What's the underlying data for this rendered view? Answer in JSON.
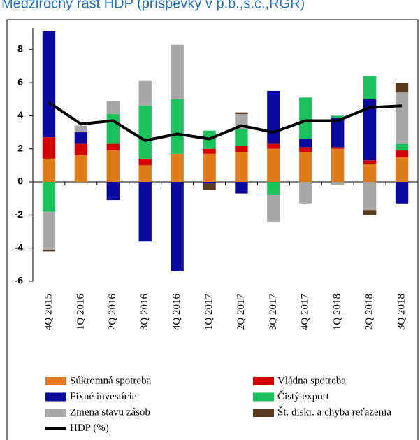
{
  "chart_data": {
    "type": "bar",
    "stacked": true,
    "title": "Medziročný rast HDP (príspevky v p.b.,s.c.,RGR)",
    "categories": [
      "4Q 2015",
      "1Q 2016",
      "2Q 2016",
      "3Q 2016",
      "4Q 2016",
      "1Q 2017",
      "2Q 2017",
      "3Q 2017",
      "4Q 2017",
      "1Q 2018",
      "2Q 2018",
      "3Q 2018"
    ],
    "series": [
      {
        "name": "Súkromná spotreba",
        "color": "#e07b1a",
        "values": [
          1.4,
          1.6,
          1.9,
          1.0,
          1.7,
          1.7,
          1.8,
          2.0,
          1.8,
          2.0,
          1.1,
          1.5
        ]
      },
      {
        "name": "Vládna spotreba",
        "color": "#d40000",
        "values": [
          1.3,
          0.7,
          0.4,
          0.4,
          0,
          0.3,
          0.4,
          0.3,
          0.3,
          0.1,
          0.2,
          0.4
        ]
      },
      {
        "name": "Fixné investície",
        "color": "#0a0aa0",
        "values": [
          6.4,
          0.7,
          -1.1,
          -3.6,
          -5.4,
          -0.1,
          -0.7,
          3.2,
          0.5,
          1.8,
          3.7,
          -1.3
        ]
      },
      {
        "name": "Čistý export",
        "color": "#19c25a",
        "values": [
          -1.8,
          0,
          1.8,
          3.2,
          3.3,
          1.1,
          1.0,
          -0.8,
          2.5,
          0.1,
          1.4,
          0.4
        ]
      },
      {
        "name": "Zmena stavu zásob",
        "color": "#a8a8a8",
        "values": [
          -2.3,
          0.4,
          0.8,
          1.5,
          3.3,
          0,
          0.9,
          -1.6,
          -1.3,
          -0.2,
          -1.7,
          3.1
        ]
      },
      {
        "name": "Št. diskr. a chyba reťazenia",
        "color": "#5a3a1e",
        "values": [
          -0.1,
          0,
          0,
          0,
          0,
          -0.4,
          0.1,
          0,
          0,
          0,
          -0.3,
          0.6
        ]
      },
      {
        "name": "HDP (%)",
        "color": "#000000",
        "type": "line",
        "values": [
          4.8,
          3.5,
          3.7,
          2.5,
          2.9,
          2.6,
          3.4,
          3.0,
          3.7,
          3.7,
          4.5,
          4.6
        ]
      }
    ],
    "ylim": [
      -6,
      9.3
    ],
    "yticks": [
      -6,
      -4,
      -2,
      0,
      2,
      4,
      6,
      8
    ],
    "grid": false
  }
}
